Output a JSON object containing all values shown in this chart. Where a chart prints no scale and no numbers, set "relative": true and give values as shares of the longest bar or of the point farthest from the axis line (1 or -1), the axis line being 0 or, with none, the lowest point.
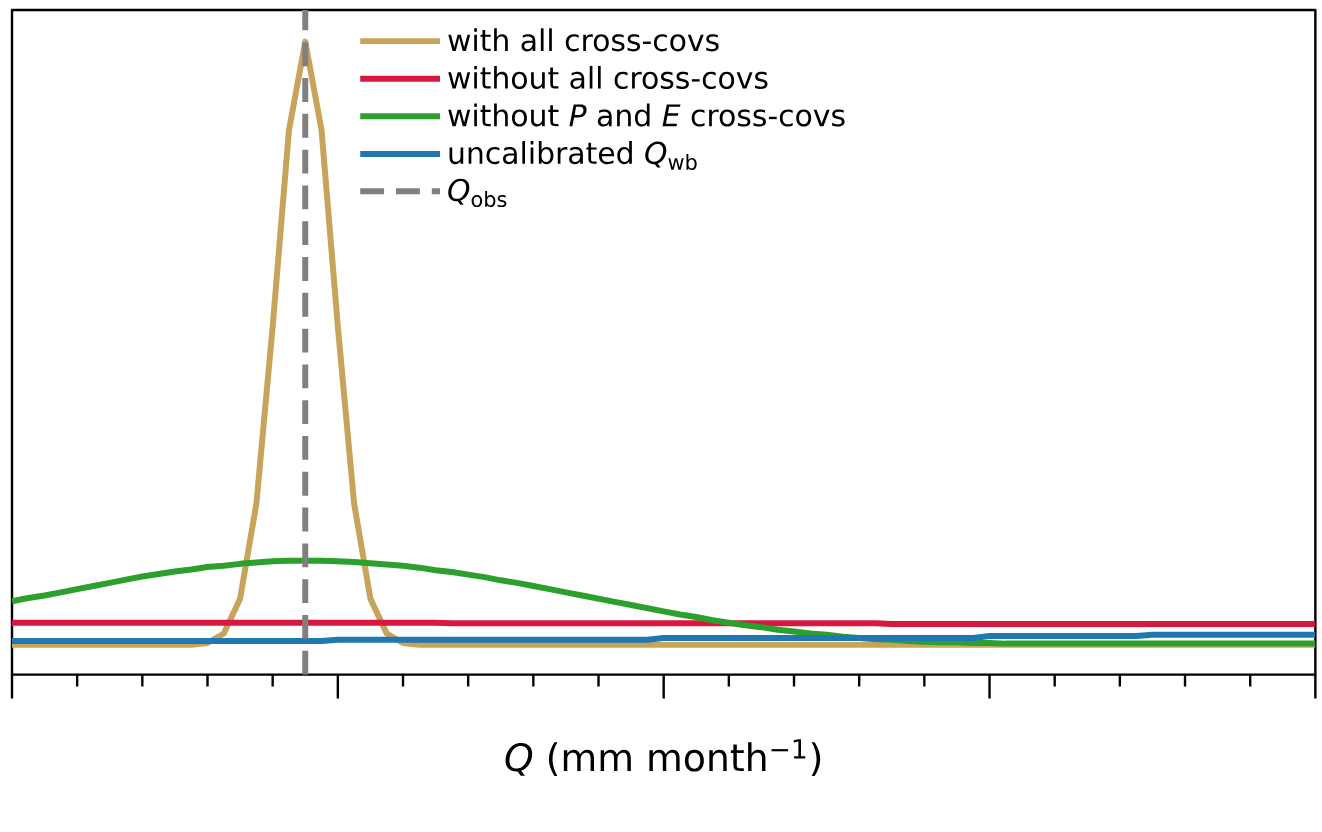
{
  "chart_data": {
    "type": "line",
    "relative": true,
    "xlabel": "*Q* (mm month$^{−1}$)",
    "categories": [
      null,
      null,
      null,
      null,
      null,
      null,
      null,
      null,
      null,
      null,
      null,
      null,
      null,
      null,
      null,
      null,
      null,
      null,
      null,
      null,
      null,
      null,
      null,
      null,
      null,
      null,
      null,
      null,
      null,
      null,
      null,
      null,
      null,
      null,
      null,
      null,
      null,
      null,
      null,
      null,
      null,
      null,
      null,
      null,
      null,
      null,
      null,
      null,
      null,
      null,
      null,
      null,
      null,
      null,
      null,
      null,
      null,
      null,
      null,
      null,
      null,
      null,
      null,
      null,
      null,
      null,
      null,
      null,
      null,
      null,
      null,
      null,
      null,
      null,
      null,
      null,
      null,
      null,
      null,
      null,
      null
    ],
    "legend": "top right",
    "line_style": "solid",
    "marker": "none",
    "series": [
      {
        "name": "with all cross-covs",
        "color": "#c8a45a",
        "values": [
          0.047,
          0.047,
          0.047,
          0.047,
          0.047,
          0.047,
          0.047,
          0.047,
          0.047,
          0.047,
          0.047,
          0.047,
          0.05,
          0.065,
          0.12,
          0.27,
          0.55,
          0.86,
          1,
          0.86,
          0.55,
          0.27,
          0.12,
          0.065,
          0.05,
          0.047,
          0.047,
          0.047,
          0.047,
          0.047,
          0.047,
          0.047,
          0.047,
          0.047,
          0.047,
          0.047,
          0.047,
          0.047,
          0.047,
          0.047,
          0.047,
          0.047,
          0.047,
          0.047,
          0.047,
          0.047,
          0.047,
          0.047,
          0.047,
          0.047,
          0.047,
          0.047,
          0.047,
          0.047,
          0.047,
          0.047,
          0.047,
          0.047,
          0.047,
          0.047,
          0.047,
          0.047,
          0.047,
          0.047,
          0.047,
          0.047,
          0.047,
          0.047,
          0.047,
          0.047,
          0.047,
          0.047,
          0.047,
          0.047,
          0.047,
          0.047,
          0.047,
          0.047,
          0.047,
          0.047,
          0.047
        ]
      },
      {
        "name": "without all cross-covs",
        "color": "#d7173f",
        "values": [
          0.082,
          0.082,
          0.082,
          0.082,
          0.082,
          0.082,
          0.082,
          0.082,
          0.082,
          0.082,
          0.082,
          0.082,
          0.082,
          0.082,
          0.082,
          0.082,
          0.082,
          0.082,
          0.082,
          0.082,
          0.082,
          0.082,
          0.082,
          0.082,
          0.082,
          0.082,
          0.082,
          0.081,
          0.081,
          0.081,
          0.081,
          0.081,
          0.081,
          0.081,
          0.081,
          0.081,
          0.081,
          0.081,
          0.081,
          0.081,
          0.081,
          0.081,
          0.081,
          0.081,
          0.081,
          0.081,
          0.081,
          0.081,
          0.081,
          0.081,
          0.081,
          0.081,
          0.081,
          0.081,
          0.08,
          0.08,
          0.08,
          0.08,
          0.08,
          0.08,
          0.08,
          0.08,
          0.08,
          0.08,
          0.08,
          0.08,
          0.08,
          0.08,
          0.08,
          0.08,
          0.08,
          0.08,
          0.08,
          0.08,
          0.08,
          0.08,
          0.08,
          0.08,
          0.08,
          0.08,
          0.08
        ]
      },
      {
        "name": "without *P* and *E* cross-covs",
        "color": "#2ca02c",
        "values": [
          0.116,
          0.121,
          0.125,
          0.13,
          0.135,
          0.14,
          0.145,
          0.15,
          0.155,
          0.159,
          0.163,
          0.166,
          0.17,
          0.172,
          0.175,
          0.177,
          0.179,
          0.18,
          0.18,
          0.18,
          0.179,
          0.178,
          0.176,
          0.174,
          0.172,
          0.169,
          0.165,
          0.162,
          0.158,
          0.154,
          0.149,
          0.145,
          0.14,
          0.135,
          0.13,
          0.125,
          0.12,
          0.115,
          0.11,
          0.105,
          0.1,
          0.095,
          0.091,
          0.086,
          0.082,
          0.078,
          0.075,
          0.071,
          0.068,
          0.065,
          0.063,
          0.06,
          0.058,
          0.056,
          0.055,
          0.053,
          0.052,
          0.051,
          0.051,
          0.05,
          0.05,
          0.049,
          0.049,
          0.049,
          0.049,
          0.049,
          0.049,
          0.049,
          0.049,
          0.049,
          0.049,
          0.049,
          0.049,
          0.049,
          0.049,
          0.049,
          0.049,
          0.049,
          0.049,
          0.049,
          0.049
        ]
      },
      {
        "name": "uncalibrated *Q*$_{wb}$",
        "color": "#1f77b4",
        "values": [
          0.053,
          0.053,
          0.053,
          0.053,
          0.053,
          0.053,
          0.053,
          0.053,
          0.053,
          0.053,
          0.053,
          0.053,
          0.053,
          0.053,
          0.053,
          0.053,
          0.053,
          0.053,
          0.053,
          0.053,
          0.055,
          0.055,
          0.055,
          0.055,
          0.055,
          0.055,
          0.055,
          0.055,
          0.055,
          0.055,
          0.055,
          0.055,
          0.055,
          0.055,
          0.055,
          0.055,
          0.055,
          0.055,
          0.055,
          0.055,
          0.058,
          0.058,
          0.058,
          0.058,
          0.058,
          0.058,
          0.058,
          0.058,
          0.058,
          0.058,
          0.058,
          0.058,
          0.058,
          0.058,
          0.058,
          0.058,
          0.058,
          0.058,
          0.058,
          0.058,
          0.061,
          0.061,
          0.061,
          0.061,
          0.061,
          0.061,
          0.061,
          0.061,
          0.061,
          0.061,
          0.063,
          0.063,
          0.063,
          0.063,
          0.063,
          0.063,
          0.063,
          0.063,
          0.063,
          0.063,
          0.063
        ]
      }
    ],
    "ref_lines": [
      {
        "axis": "x",
        "label": "*Q*$_{obs}$",
        "color": "#808080",
        "line_style": "dashed"
      }
    ]
  }
}
